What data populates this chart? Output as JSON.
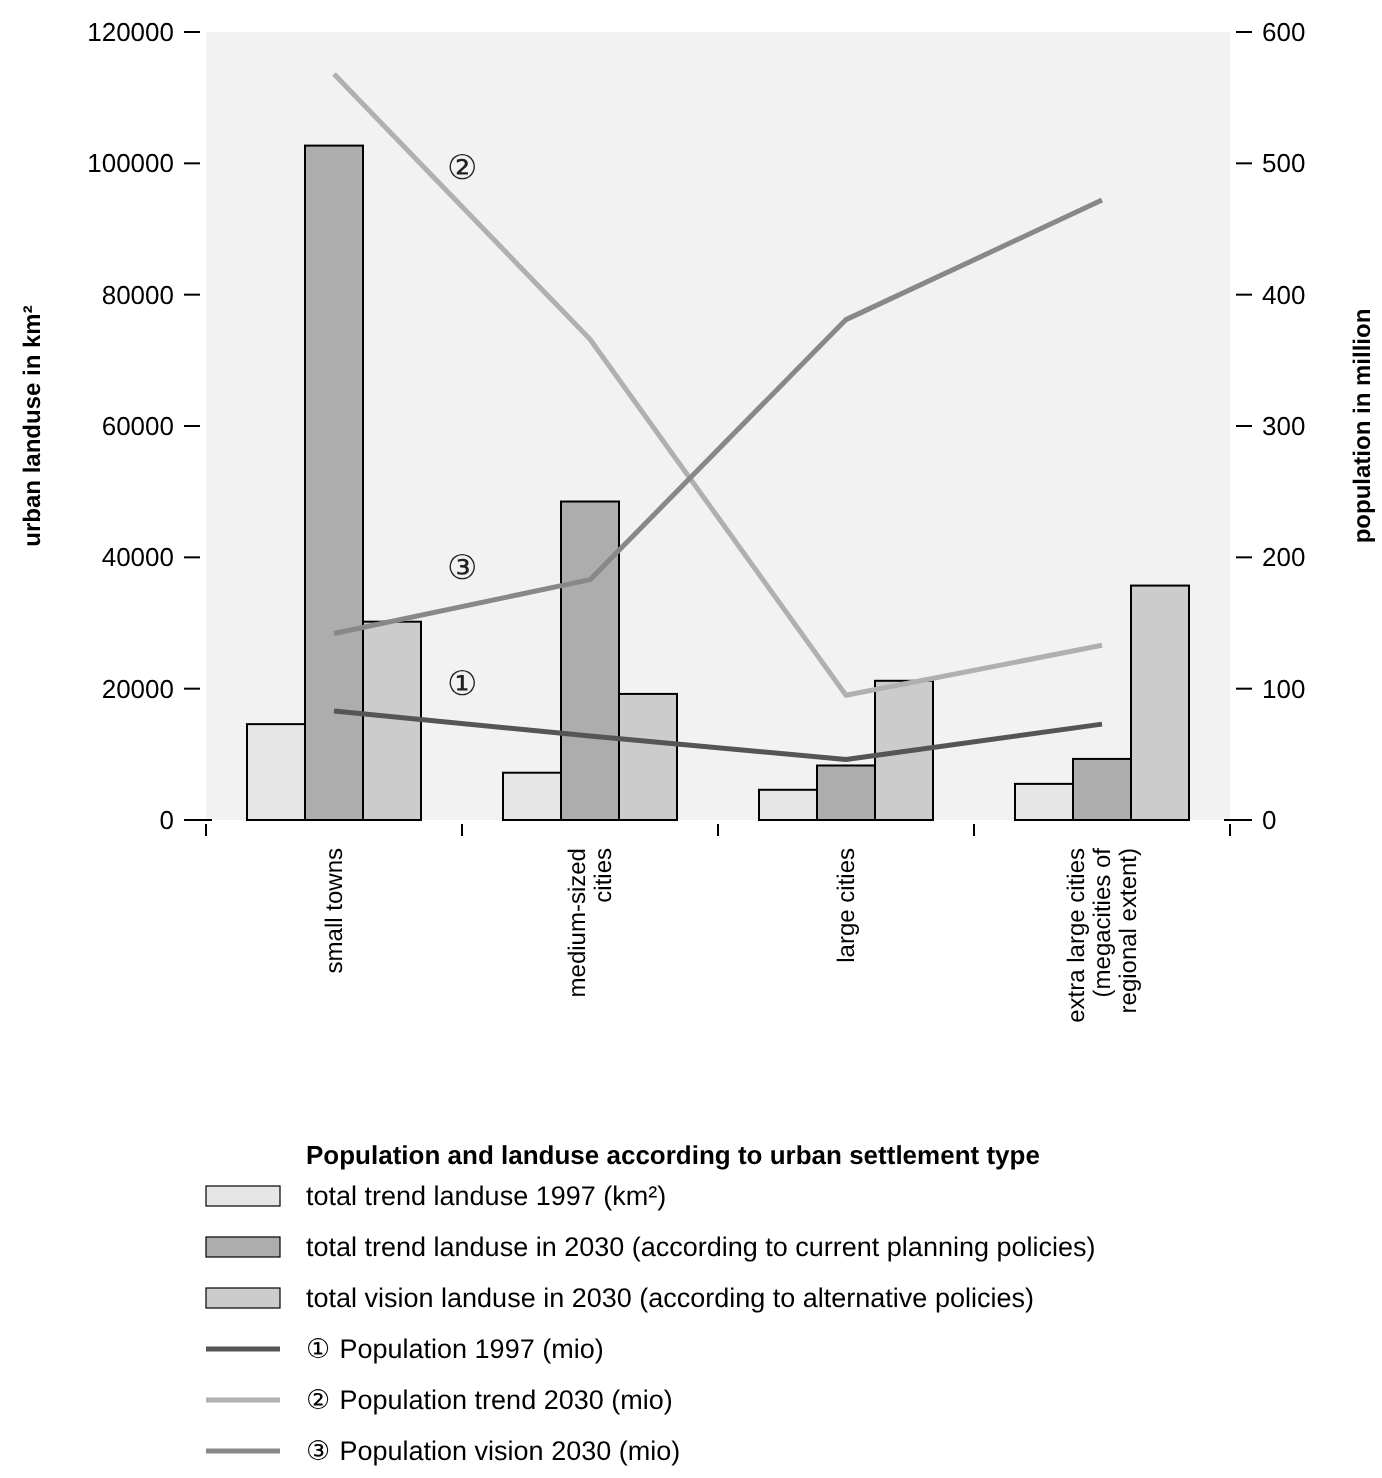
{
  "chart_data": {
    "type": "bar",
    "title": "Population and landuse according to urban settlement type",
    "categories": [
      "small towns",
      "medium-sized cities",
      "large cities",
      "extra large cities (megacities of regional extent)"
    ],
    "series": [
      {
        "name": "total trend landuse 1997 (km²)",
        "color": "#e6e6e6",
        "values": [
          14600,
          7200,
          4600,
          5500
        ]
      },
      {
        "name": "total trend landuse in 2030 (according to current planning policies)",
        "color": "#adadad",
        "values": [
          102700,
          48500,
          8300,
          9300
        ]
      },
      {
        "name": "total vision landuse in 2030 (according to alternative policies)",
        "color": "#cccccc",
        "values": [
          30200,
          19200,
          21200,
          35700
        ]
      },
      {
        "name": "① Population 1997 (mio)",
        "type": "line",
        "axis": "y2",
        "color": "#555555",
        "values": [
          83,
          64,
          46,
          73
        ]
      },
      {
        "name": "② Population trend 2030 (mio)",
        "type": "line",
        "axis": "y2",
        "color": "#b0b0b0",
        "values": [
          568,
          366,
          95,
          133
        ]
      },
      {
        "name": "③ Population vision 2030 (mio)",
        "type": "line",
        "axis": "y2",
        "color": "#888888",
        "values": [
          142,
          183,
          381,
          472
        ]
      }
    ],
    "ylabel": "urban landuse in km²",
    "y2label": "population in million",
    "ylim": [
      0,
      120000
    ],
    "yticks": [
      0,
      20000,
      40000,
      60000,
      80000,
      100000,
      120000
    ],
    "y2lim": [
      0,
      600
    ],
    "y2ticks": [
      0,
      100,
      200,
      300,
      400,
      500,
      600
    ],
    "annotations": [
      "①",
      "②",
      "③"
    ],
    "grid": false,
    "legend": "bottom"
  }
}
